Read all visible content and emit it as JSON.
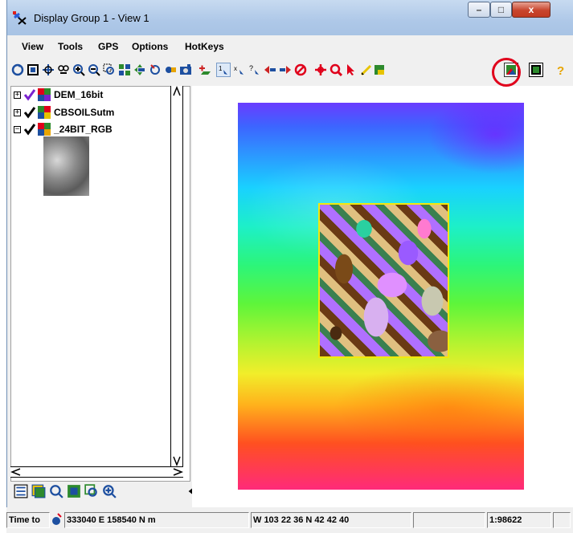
{
  "window": {
    "title": "Display Group 1 - View 1",
    "controls": {
      "minimize": "–",
      "maximize": "□",
      "close": "x"
    }
  },
  "menubar": {
    "items": [
      "View",
      "Tools",
      "GPS",
      "Options",
      "HotKeys"
    ]
  },
  "toolbar": {
    "highlighted_tool": "2d-3d-toggle-tool",
    "tools": [
      "redraw-icon",
      "zoom-full-icon",
      "zoom-layer-icon",
      "zoom-group-icon",
      "zoom-in-icon",
      "zoom-out-icon",
      "zoom-box-icon",
      "tile-icon",
      "pan-icon",
      "rotate-icon",
      "hand-icon",
      "camera-icon",
      "add-layer-icon",
      "scale-1-icon",
      "scale-x-icon",
      "help-cursor-icon",
      "previous-icon",
      "next-icon",
      "stop-icon",
      "pan-cross-icon",
      "zoom-lens-icon",
      "select-arrow-icon",
      "sketch-icon",
      "2d-3d-toggle-icon",
      "frame-icon",
      "help-icon"
    ]
  },
  "layers": [
    {
      "label": "DEM_16bit",
      "expander": "+",
      "checked": true,
      "check_color": "#7a22cf"
    },
    {
      "label": "CBSOILSutm",
      "expander": "+",
      "checked": true,
      "check_color": "#000000"
    },
    {
      "label": "_24BIT_RGB",
      "expander": "−",
      "checked": true,
      "check_color": "#000000"
    }
  ],
  "statusbar": {
    "time_label": "Time to",
    "coords_map": "333040 E  158540 N m",
    "coords_geo": "W 103 22 36  N 42 42 40",
    "scale": "1:98622"
  }
}
